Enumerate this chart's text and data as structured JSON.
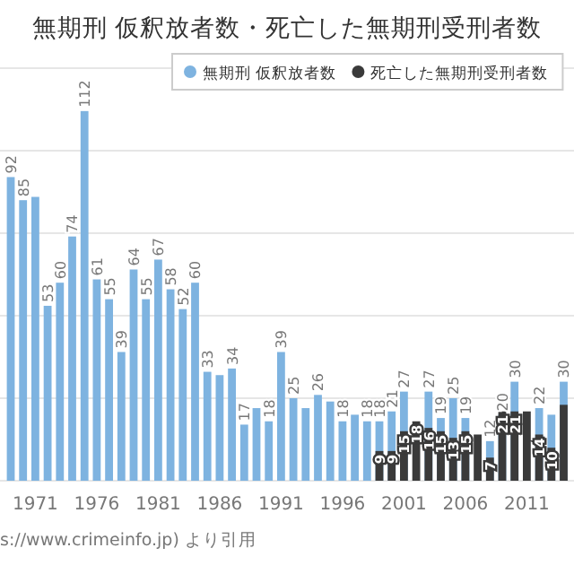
{
  "chart_data": {
    "type": "bar",
    "title": "無期刑 仮釈放者数・死亡した無期刑受刑者数",
    "categories": [
      null,
      null,
      "1971",
      null,
      null,
      null,
      null,
      "1976",
      null,
      null,
      null,
      null,
      "1981",
      null,
      null,
      null,
      null,
      "1986",
      null,
      null,
      null,
      null,
      "1991",
      null,
      null,
      null,
      null,
      "1996",
      null,
      null,
      null,
      null,
      "2001",
      null,
      null,
      null,
      null,
      "2006",
      null,
      null,
      null,
      null,
      "2011",
      null,
      null,
      null
    ],
    "series": [
      {
        "name": "無期刑 仮釈放者数",
        "color": "#7eb3e0",
        "values": [
          92,
          85,
          86,
          53,
          60,
          74,
          112,
          61,
          55,
          39,
          64,
          55,
          67,
          58,
          52,
          60,
          33,
          32,
          34,
          17,
          22,
          18,
          39,
          25,
          22,
          26,
          24,
          18,
          20,
          18,
          18,
          21,
          27,
          null,
          27,
          19,
          25,
          19,
          null,
          12,
          20,
          30,
          null,
          22,
          20,
          30
        ],
        "value_labels": [
          "92",
          "85",
          null,
          "53",
          "60",
          "74",
          "112",
          "61",
          "55",
          "39",
          "64",
          "55",
          "67",
          "58",
          "52",
          "60",
          "33",
          null,
          "34",
          "17",
          null,
          "18",
          "39",
          "25",
          null,
          "26",
          null,
          "18",
          null,
          "18",
          "18",
          "21",
          "27",
          null,
          "27",
          "19",
          "25",
          "19",
          null,
          "12",
          "20",
          "30",
          null,
          "22",
          null,
          "30"
        ]
      },
      {
        "name": "死亡した無期刑受刑者数",
        "color": "#3a3a3a",
        "values": [
          null,
          null,
          null,
          null,
          null,
          null,
          null,
          null,
          null,
          null,
          null,
          null,
          null,
          null,
          null,
          null,
          null,
          null,
          null,
          null,
          null,
          null,
          null,
          null,
          null,
          null,
          null,
          null,
          null,
          null,
          9,
          9,
          15,
          18,
          16,
          15,
          13,
          15,
          14,
          7,
          21,
          21,
          21,
          14,
          10,
          23
        ],
        "value_labels": [
          null,
          null,
          null,
          null,
          null,
          null,
          null,
          null,
          null,
          null,
          null,
          null,
          null,
          null,
          null,
          null,
          null,
          null,
          null,
          null,
          null,
          null,
          null,
          null,
          null,
          null,
          null,
          null,
          null,
          null,
          "9",
          "9",
          "15",
          "18",
          "16",
          "15",
          "13",
          "15",
          null,
          "7",
          "21",
          "21",
          null,
          "14",
          "10",
          null
        ]
      }
    ],
    "ylim": [
      0,
      125
    ],
    "yticks": [
      {
        "value": 0,
        "label": null
      },
      {
        "value": 25,
        "label": null
      },
      {
        "value": 50,
        "label": null
      },
      {
        "value": 75,
        "label": null
      },
      {
        "value": 100,
        "label": null
      },
      {
        "value": 125,
        "label": null
      }
    ],
    "grid": "y",
    "legend": "top right",
    "annotations": [
      "s://www.crimeinfo.jp) より引用"
    ]
  }
}
